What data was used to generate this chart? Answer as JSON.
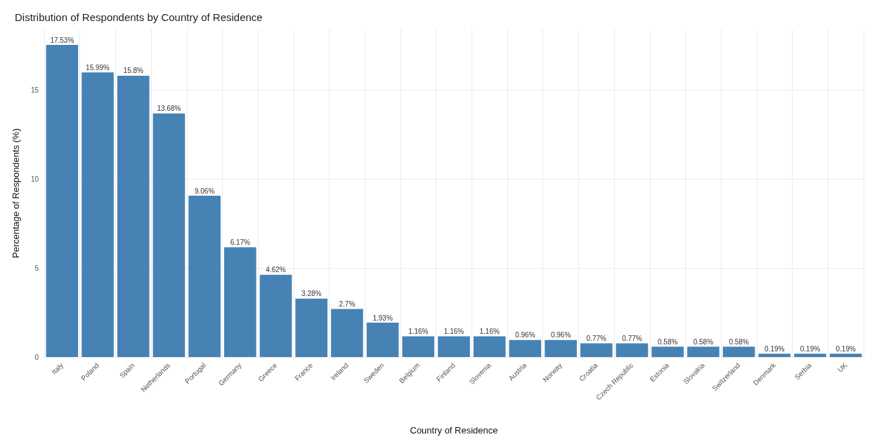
{
  "chart_data": {
    "type": "bar",
    "title": "Distribution of Respondents by Country of Residence",
    "xlabel": "Country of Residence",
    "ylabel": "Percentage of Respondents (%)",
    "categories": [
      "Italy",
      "Poland",
      "Spain",
      "Netherlands",
      "Portugal",
      "Germany",
      "Greece",
      "France",
      "Ireland",
      "Sweden",
      "Belgium",
      "Finland",
      "Slovenia",
      "Austria",
      "Norway",
      "Croatia",
      "Czech Republic",
      "Estonia",
      "Slovakia",
      "Switzerland",
      "Denmark",
      "Serbia",
      "UK"
    ],
    "values": [
      17.53,
      15.99,
      15.8,
      13.68,
      9.06,
      6.17,
      4.62,
      3.28,
      2.7,
      1.93,
      1.16,
      1.16,
      1.16,
      0.96,
      0.96,
      0.77,
      0.77,
      0.58,
      0.58,
      0.58,
      0.19,
      0.19,
      0.19
    ],
    "value_labels": [
      "17.53%",
      "15.99%",
      "15.8%",
      "13.68%",
      "9.06%",
      "6.17%",
      "4.62%",
      "3.28%",
      "2.7%",
      "1.93%",
      "1.16%",
      "1.16%",
      "1.16%",
      "0.96%",
      "0.96%",
      "0.77%",
      "0.77%",
      "0.58%",
      "0.58%",
      "0.58%",
      "0.19%",
      "0.19%",
      "0.19%"
    ],
    "color": "#4682b4",
    "ylim": [
      0,
      18.4
    ],
    "yticks": [
      0,
      5,
      10,
      15
    ],
    "grid": true
  }
}
